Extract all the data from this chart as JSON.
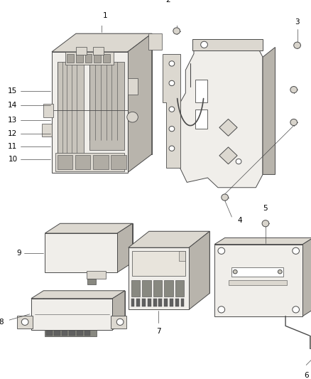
{
  "background_color": "#ffffff",
  "line_color": "#4a4a4a",
  "light_fill": "#f0eeea",
  "mid_fill": "#dcd8d0",
  "dark_fill": "#b8b4ac",
  "label_fontsize": 7.5,
  "fig_width": 4.38,
  "fig_height": 5.33,
  "dpi": 100
}
